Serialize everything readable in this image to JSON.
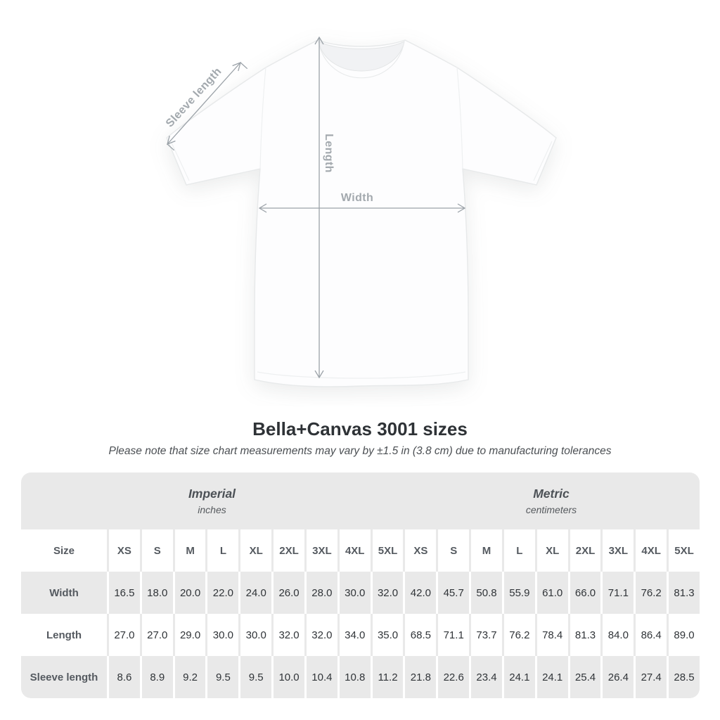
{
  "colors": {
    "table_shade": "#e9e9e9",
    "number_text": "#303438",
    "label_text": "#555a60",
    "arrow_gray": "#9ba2a8",
    "diagram_label_gray": "#a3a9ae"
  },
  "diagram": {
    "sleeve_label": "Sleeve length",
    "length_label": "Length",
    "width_label": "Width"
  },
  "title": "Bella+Canvas 3001 sizes",
  "subtitle": "Please note that size chart measurements may vary by ±1.5 in (3.8 cm) due to manufacturing tolerances",
  "table": {
    "groups": [
      {
        "label": "Imperial",
        "unit": "inches"
      },
      {
        "label": "Metric",
        "unit": "centimeters"
      }
    ],
    "size_header": "Size",
    "sizes": [
      "XS",
      "S",
      "M",
      "L",
      "XL",
      "2XL",
      "3XL",
      "4XL",
      "5XL"
    ],
    "rows": [
      {
        "key": "width",
        "label": "Width",
        "imperial": [
          "16.5",
          "18.0",
          "20.0",
          "22.0",
          "24.0",
          "26.0",
          "28.0",
          "30.0",
          "32.0"
        ],
        "metric": [
          "42.0",
          "45.7",
          "50.8",
          "55.9",
          "61.0",
          "66.0",
          "71.1",
          "76.2",
          "81.3"
        ]
      },
      {
        "key": "length",
        "label": "Length",
        "imperial": [
          "27.0",
          "27.0",
          "29.0",
          "30.0",
          "30.0",
          "32.0",
          "32.0",
          "34.0",
          "35.0"
        ],
        "metric": [
          "68.5",
          "71.1",
          "73.7",
          "76.2",
          "78.4",
          "81.3",
          "84.0",
          "86.4",
          "89.0"
        ]
      },
      {
        "key": "sleeve-length",
        "label": "Sleeve length",
        "imperial": [
          "8.6",
          "8.9",
          "9.2",
          "9.5",
          "9.5",
          "10.0",
          "10.4",
          "10.8",
          "11.2"
        ],
        "metric": [
          "21.8",
          "22.6",
          "23.4",
          "24.1",
          "24.1",
          "25.4",
          "26.4",
          "27.4",
          "28.5"
        ]
      }
    ]
  },
  "chart_data": {
    "type": "table",
    "title": "Bella+Canvas 3001 sizes",
    "note": "Size chart measurements may vary by ±1.5 in (3.8 cm) due to manufacturing tolerances",
    "column_groups": [
      {
        "label": "Imperial",
        "unit": "inches"
      },
      {
        "label": "Metric",
        "unit": "centimeters"
      }
    ],
    "sizes": [
      "XS",
      "S",
      "M",
      "L",
      "XL",
      "2XL",
      "3XL",
      "4XL",
      "5XL"
    ],
    "rows": [
      {
        "measurement": "Width",
        "imperial_inches": [
          16.5,
          18.0,
          20.0,
          22.0,
          24.0,
          26.0,
          28.0,
          30.0,
          32.0
        ],
        "metric_centimeters": [
          42.0,
          45.7,
          50.8,
          55.9,
          61.0,
          66.0,
          71.1,
          76.2,
          81.3
        ]
      },
      {
        "measurement": "Length",
        "imperial_inches": [
          27.0,
          27.0,
          29.0,
          30.0,
          30.0,
          32.0,
          32.0,
          34.0,
          35.0
        ],
        "metric_centimeters": [
          68.5,
          71.1,
          73.7,
          76.2,
          78.4,
          81.3,
          84.0,
          86.4,
          89.0
        ]
      },
      {
        "measurement": "Sleeve length",
        "imperial_inches": [
          8.6,
          8.9,
          9.2,
          9.5,
          9.5,
          10.0,
          10.4,
          10.8,
          11.2
        ],
        "metric_centimeters": [
          21.8,
          22.6,
          23.4,
          24.1,
          24.1,
          25.4,
          26.4,
          27.4,
          28.5
        ]
      }
    ]
  }
}
